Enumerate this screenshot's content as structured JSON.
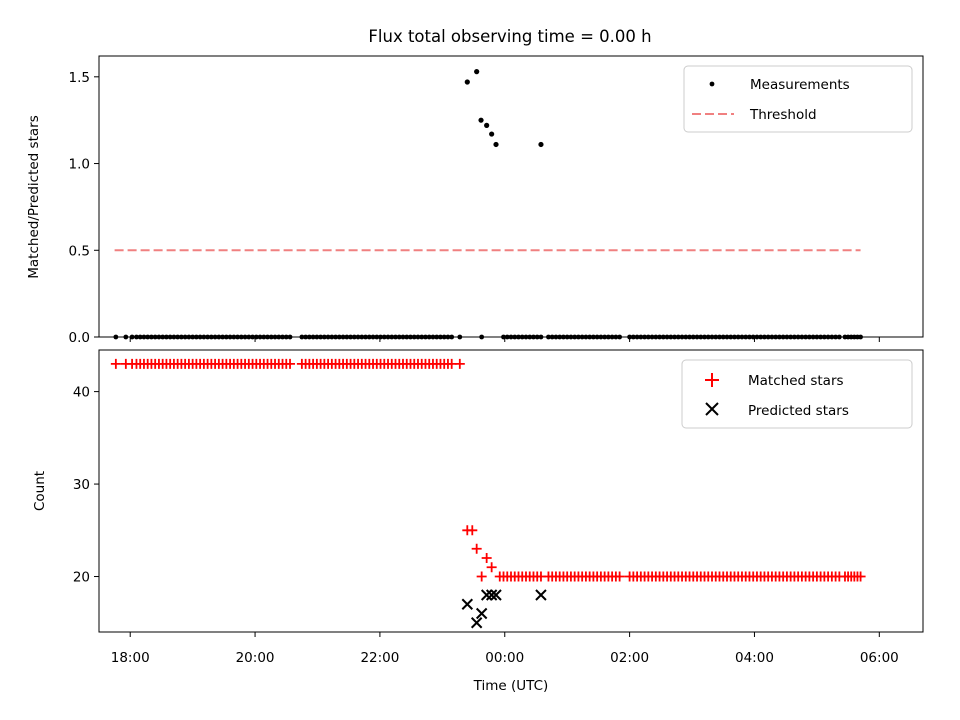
{
  "title": "Flux total observing time = 0.00 h",
  "xlabel": "Time (UTC)",
  "colors": {
    "measurement": "#000000",
    "threshold": "#f08080",
    "matched": "#ff0000",
    "predicted": "#000000"
  },
  "chart_data": [
    {
      "type": "scatter",
      "id": "ratio",
      "ylabel": "Matched/Predicted stars",
      "ylim": [
        0,
        1.62
      ],
      "yticks": [
        0.0,
        0.5,
        1.0,
        1.5
      ],
      "ytick_labels": [
        "0.0",
        "0.5",
        "1.0",
        "1.5"
      ],
      "xlim": [
        17.5,
        30.7
      ],
      "legend": [
        "Measurements",
        "Threshold"
      ],
      "threshold": {
        "value": 0.5,
        "x": [
          17.75,
          29.7
        ]
      },
      "zero_points_x": [
        17.77,
        17.93,
        18.03,
        18.1,
        18.16,
        18.22,
        18.28,
        18.34,
        18.4,
        18.46,
        18.52,
        18.58,
        18.64,
        18.7,
        18.76,
        18.82,
        18.88,
        18.94,
        19.0,
        19.06,
        19.12,
        19.18,
        19.24,
        19.3,
        19.36,
        19.42,
        19.48,
        19.54,
        19.6,
        19.66,
        19.72,
        19.78,
        19.84,
        19.9,
        19.96,
        20.02,
        20.08,
        20.14,
        20.2,
        20.26,
        20.32,
        20.38,
        20.44,
        20.5,
        20.56,
        20.75,
        20.81,
        20.87,
        20.93,
        20.99,
        21.05,
        21.11,
        21.17,
        21.23,
        21.29,
        21.35,
        21.41,
        21.47,
        21.53,
        21.59,
        21.65,
        21.71,
        21.77,
        21.83,
        21.89,
        21.95,
        22.01,
        22.07,
        22.13,
        22.19,
        22.25,
        22.31,
        22.37,
        22.43,
        22.49,
        22.55,
        22.61,
        22.67,
        22.73,
        22.79,
        22.85,
        22.91,
        22.97,
        23.03,
        23.09,
        23.15,
        23.28,
        23.63,
        23.98,
        24.04,
        24.1,
        24.16,
        24.22,
        24.28,
        24.34,
        24.4,
        24.46,
        24.52,
        24.58,
        24.7,
        24.76,
        24.82,
        24.88,
        24.94,
        25.0,
        25.06,
        25.12,
        25.18,
        25.24,
        25.3,
        25.36,
        25.42,
        25.48,
        25.54,
        25.6,
        25.66,
        25.72,
        25.78,
        25.84,
        26.0,
        26.06,
        26.12,
        26.18,
        26.24,
        26.3,
        26.36,
        26.42,
        26.48,
        26.54,
        26.6,
        26.66,
        26.72,
        26.78,
        26.84,
        26.9,
        26.96,
        27.02,
        27.08,
        27.14,
        27.2,
        27.26,
        27.32,
        27.38,
        27.44,
        27.5,
        27.56,
        27.62,
        27.68,
        27.74,
        27.8,
        27.86,
        27.92,
        27.98,
        28.04,
        28.1,
        28.16,
        28.22,
        28.28,
        28.34,
        28.4,
        28.46,
        28.52,
        28.58,
        28.64,
        28.7,
        28.76,
        28.82,
        28.88,
        28.94,
        29.0,
        29.06,
        29.12,
        29.18,
        29.24,
        29.3,
        29.36,
        29.45,
        29.5,
        29.55,
        29.6,
        29.65,
        29.7
      ],
      "points": [
        {
          "x": 23.4,
          "y": 1.47
        },
        {
          "x": 23.55,
          "y": 1.53
        },
        {
          "x": 23.62,
          "y": 1.25
        },
        {
          "x": 23.71,
          "y": 1.22
        },
        {
          "x": 23.79,
          "y": 1.17
        },
        {
          "x": 23.86,
          "y": 1.11
        },
        {
          "x": 24.58,
          "y": 1.11
        }
      ]
    },
    {
      "type": "scatter",
      "id": "counts",
      "ylabel": "Count",
      "ylim": [
        14,
        44.5
      ],
      "yticks": [
        20,
        30,
        40
      ],
      "ytick_labels": [
        "20",
        "30",
        "40"
      ],
      "xlim": [
        17.5,
        30.7
      ],
      "xticks": [
        18,
        20,
        22,
        24,
        26,
        28,
        30
      ],
      "xtick_labels": [
        "18:00",
        "20:00",
        "22:00",
        "00:00",
        "02:00",
        "04:00",
        "06:00"
      ],
      "legend": [
        "Matched stars",
        "Predicted stars"
      ],
      "matched_high": {
        "value": 43,
        "x": [
          17.77,
          17.93,
          18.03,
          18.1,
          18.16,
          18.22,
          18.28,
          18.34,
          18.4,
          18.46,
          18.52,
          18.58,
          18.64,
          18.7,
          18.76,
          18.82,
          18.88,
          18.94,
          19.0,
          19.06,
          19.12,
          19.18,
          19.24,
          19.3,
          19.36,
          19.42,
          19.48,
          19.54,
          19.6,
          19.66,
          19.72,
          19.78,
          19.84,
          19.9,
          19.96,
          20.02,
          20.08,
          20.14,
          20.2,
          20.26,
          20.32,
          20.38,
          20.44,
          20.5,
          20.56,
          20.75,
          20.81,
          20.87,
          20.93,
          20.99,
          21.05,
          21.11,
          21.17,
          21.23,
          21.29,
          21.35,
          21.41,
          21.47,
          21.53,
          21.59,
          21.65,
          21.71,
          21.77,
          21.83,
          21.89,
          21.95,
          22.01,
          22.07,
          22.13,
          22.19,
          22.25,
          22.31,
          22.37,
          22.43,
          22.49,
          22.55,
          22.61,
          22.67,
          22.73,
          22.79,
          22.85,
          22.91,
          22.97,
          23.03,
          23.09,
          23.15,
          23.28
        ]
      },
      "matched_transition": [
        {
          "x": 23.4,
          "y": 25
        },
        {
          "x": 23.48,
          "y": 25
        },
        {
          "x": 23.55,
          "y": 23
        },
        {
          "x": 23.63,
          "y": 20
        },
        {
          "x": 23.71,
          "y": 22
        },
        {
          "x": 23.79,
          "y": 21
        }
      ],
      "matched_low": {
        "value": 20,
        "x": [
          23.92,
          23.98,
          24.04,
          24.1,
          24.16,
          24.22,
          24.28,
          24.34,
          24.4,
          24.46,
          24.52,
          24.58,
          24.7,
          24.76,
          24.82,
          24.88,
          24.94,
          25.0,
          25.06,
          25.12,
          25.18,
          25.24,
          25.3,
          25.36,
          25.42,
          25.48,
          25.54,
          25.6,
          25.66,
          25.72,
          25.78,
          25.84,
          26.0,
          26.06,
          26.12,
          26.18,
          26.24,
          26.3,
          26.36,
          26.42,
          26.48,
          26.54,
          26.6,
          26.66,
          26.72,
          26.78,
          26.84,
          26.9,
          26.96,
          27.02,
          27.08,
          27.14,
          27.2,
          27.26,
          27.32,
          27.38,
          27.44,
          27.5,
          27.56,
          27.62,
          27.68,
          27.74,
          27.8,
          27.86,
          27.92,
          27.98,
          28.04,
          28.1,
          28.16,
          28.22,
          28.28,
          28.34,
          28.4,
          28.46,
          28.52,
          28.58,
          28.64,
          28.7,
          28.76,
          28.82,
          28.88,
          28.94,
          29.0,
          29.06,
          29.12,
          29.18,
          29.24,
          29.3,
          29.36,
          29.45,
          29.5,
          29.55,
          29.6,
          29.65,
          29.7
        ]
      },
      "predicted": [
        {
          "x": 23.4,
          "y": 17
        },
        {
          "x": 23.55,
          "y": 15
        },
        {
          "x": 23.63,
          "y": 16
        },
        {
          "x": 23.71,
          "y": 18
        },
        {
          "x": 23.79,
          "y": 18
        },
        {
          "x": 23.86,
          "y": 18
        },
        {
          "x": 24.58,
          "y": 18
        }
      ]
    }
  ]
}
